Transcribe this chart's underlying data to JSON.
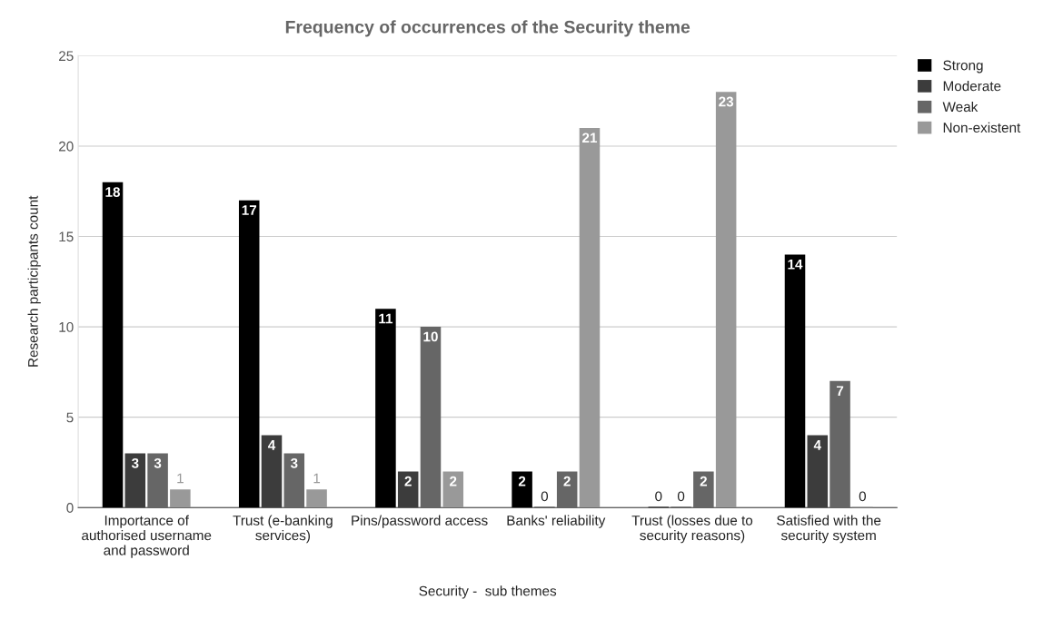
{
  "chart_data": {
    "type": "bar",
    "title": "Frequency of occurrences of the Security theme",
    "xlabel": "Security -  sub themes",
    "ylabel": "Research participants count",
    "categories": [
      "Importance of authorised username and password",
      "Trust (e-banking services)",
      "Pins/password access",
      "Banks' reliability",
      "Trust (losses due to security reasons)",
      "Satisfied with the security system"
    ],
    "series": [
      {
        "name": "Strong",
        "color": "#000000",
        "values": [
          18,
          17,
          11,
          2,
          0,
          14
        ]
      },
      {
        "name": "Moderate",
        "color": "#3c3c3c",
        "values": [
          3,
          4,
          2,
          0,
          0,
          4
        ]
      },
      {
        "name": "Weak",
        "color": "#666666",
        "values": [
          3,
          3,
          10,
          2,
          2,
          7
        ]
      },
      {
        "name": "Non-existent",
        "color": "#999999",
        "values": [
          1,
          1,
          2,
          21,
          23,
          0
        ]
      }
    ],
    "ylim": [
      0,
      25
    ],
    "yticks": [
      0,
      5,
      10,
      15,
      20,
      25
    ],
    "grid": "y",
    "legend": "top right",
    "data_labels": true
  }
}
